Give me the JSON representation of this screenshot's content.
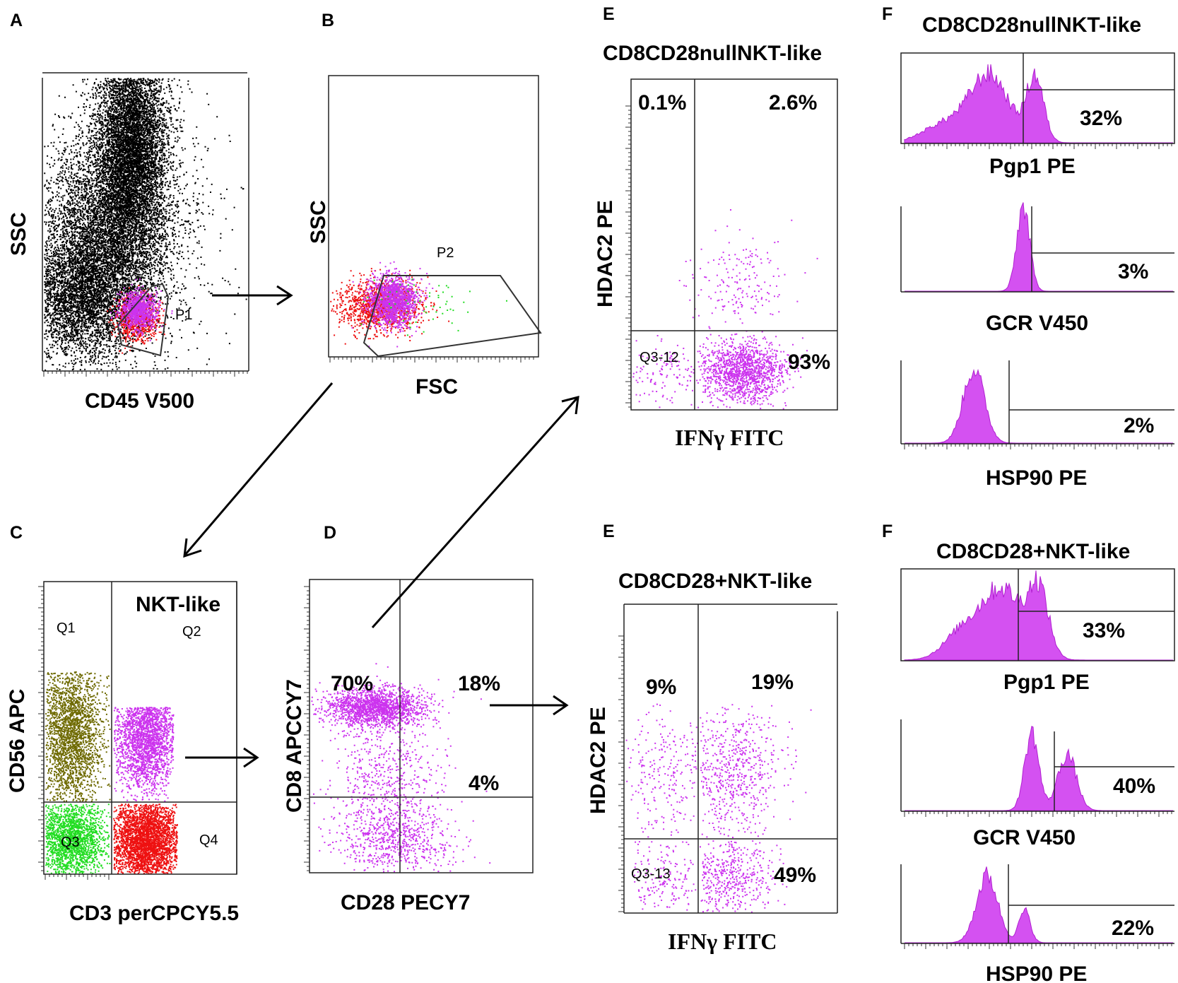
{
  "panels": {
    "A": {
      "label": "A",
      "xlabel": "CD45 V500",
      "ylabel": "SSC",
      "gate": "P1"
    },
    "B": {
      "label": "B",
      "xlabel": "FSC",
      "ylabel": "SSC",
      "gate": "P2"
    },
    "C": {
      "label": "C",
      "xlabel": "CD3 perCPCY5.5",
      "ylabel": "CD56 APC",
      "title": "NKT-like",
      "quadrants": [
        "Q1",
        "Q2",
        "Q3",
        "Q4"
      ]
    },
    "D": {
      "label": "D",
      "xlabel": "CD28 PECY7",
      "ylabel": "CD8 APCCY7",
      "ul": "70%",
      "ur": "18%",
      "lr": "4%"
    },
    "E1": {
      "label": "E",
      "title": "CD8CD28nullNKT-like",
      "xlabel": "IFNγ FITC",
      "ylabel": "HDAC2 PE",
      "ul": "0.1%",
      "ur": "2.6%",
      "lr": "93%",
      "gate": "Q3-12"
    },
    "E2": {
      "label": "E",
      "title": "CD8CD28+NKT-like",
      "xlabel": "IFNγ FITC",
      "ylabel": "HDAC2 PE",
      "ul": "9%",
      "ur": "19%",
      "lr": "49%",
      "gate": "Q3-13"
    },
    "F1": {
      "label": "F",
      "title": "CD8CD28nullNKT-like",
      "hists": [
        {
          "xlabel": "Pgp1 PE",
          "pct": "32%"
        },
        {
          "xlabel": "GCR V450",
          "pct": "3%"
        },
        {
          "xlabel": "HSP90 PE",
          "pct": "2%"
        }
      ]
    },
    "F2": {
      "label": "F",
      "title": "CD8CD28+NKT-like",
      "hists": [
        {
          "xlabel": "Pgp1 PE",
          "pct": "33%"
        },
        {
          "xlabel": "GCR V450",
          "pct": "40%"
        },
        {
          "xlabel": "HSP90 PE",
          "pct": "22%"
        }
      ]
    }
  },
  "colors": {
    "magenta": "#cc33ee",
    "red": "#ee1111",
    "olive": "#6e6a00",
    "green": "#22dd22",
    "black": "#000000"
  }
}
